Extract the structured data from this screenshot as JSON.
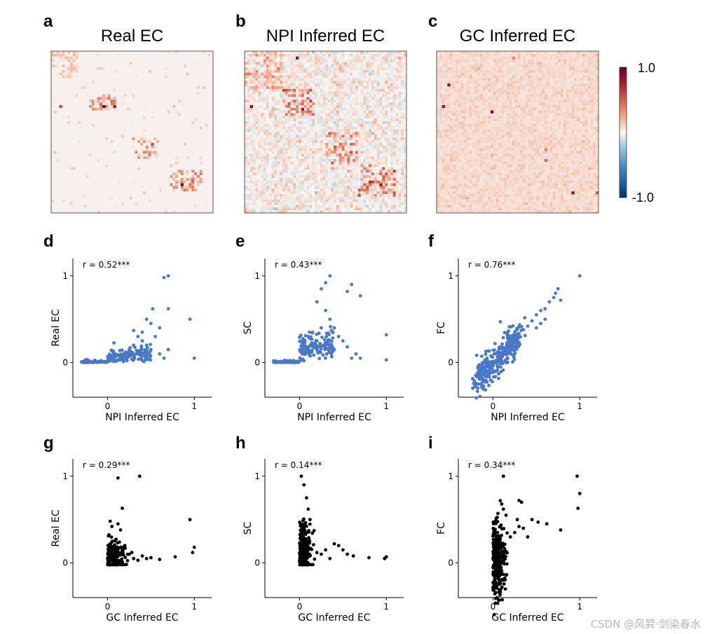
{
  "figure": {
    "watermark": "CSDN @风巽·剑染春水",
    "colorbar": {
      "max_label": "1.0",
      "min_label": "-1.0",
      "colormap": [
        "#053061",
        "#2166ac",
        "#4393c3",
        "#92c5de",
        "#f7f7f7",
        "#f4a582",
        "#d6604d",
        "#b2182b",
        "#67001f"
      ]
    },
    "scatter_colors": {
      "top_row": "#4a78c9",
      "bottom_row": "#000000"
    }
  },
  "chart_data": [
    {
      "type": "heatmap",
      "panel": "a",
      "title": "Real EC",
      "grid_size": 60,
      "value_range": [
        -1.0,
        1.0
      ],
      "background_value": 0.02,
      "clusters": [
        {
          "rows": [
            0,
            10
          ],
          "cols": [
            0,
            10
          ],
          "intensity": 0.18
        },
        {
          "rows": [
            16,
            22
          ],
          "cols": [
            14,
            24
          ],
          "intensity": 0.45
        },
        {
          "rows": [
            32,
            40
          ],
          "cols": [
            30,
            40
          ],
          "intensity": 0.4
        },
        {
          "rows": [
            44,
            52
          ],
          "cols": [
            44,
            56
          ],
          "intensity": 0.45
        }
      ],
      "peaks": [
        [
          20,
          19,
          1.0
        ],
        [
          20,
          23,
          0.8
        ],
        [
          20,
          3,
          0.6
        ],
        [
          49,
          48,
          0.95
        ],
        [
          34,
          37,
          0.6
        ]
      ]
    },
    {
      "type": "heatmap",
      "panel": "b",
      "title": "NPI Inferred EC",
      "grid_size": 60,
      "value_range": [
        -1.0,
        1.0
      ],
      "background_value": 0.03,
      "clusters": [
        {
          "rows": [
            0,
            14
          ],
          "cols": [
            0,
            14
          ],
          "intensity": 0.3
        },
        {
          "rows": [
            14,
            24
          ],
          "cols": [
            14,
            26
          ],
          "intensity": 0.55
        },
        {
          "rows": [
            30,
            42
          ],
          "cols": [
            30,
            42
          ],
          "intensity": 0.45
        },
        {
          "rows": [
            42,
            54
          ],
          "cols": [
            42,
            56
          ],
          "intensity": 0.6
        }
      ],
      "peaks": [
        [
          2,
          19,
          0.9
        ],
        [
          20,
          2,
          0.95
        ],
        [
          21,
          21,
          0.8
        ],
        [
          49,
          50,
          0.85
        ],
        [
          48,
          46,
          0.7
        ]
      ]
    },
    {
      "type": "heatmap",
      "panel": "c",
      "title": "GC Inferred EC",
      "grid_size": 60,
      "value_range": [
        -1.0,
        1.0
      ],
      "background_value": 0.05,
      "clusters": [],
      "peaks": [
        [
          12,
          4,
          0.9
        ],
        [
          20,
          2,
          0.85
        ],
        [
          22,
          20,
          0.95
        ],
        [
          40,
          40,
          0.5
        ],
        [
          52,
          50,
          0.9
        ],
        [
          52,
          60,
          0.6
        ],
        [
          2,
          28,
          0.35
        ],
        [
          36,
          40,
          0.4
        ]
      ]
    },
    {
      "type": "scatter",
      "panel": "d",
      "xlabel": "NPI Inferred EC",
      "ylabel": "Real EC",
      "annotation": "r = 0.52***",
      "xlim": [
        -0.4,
        1.2
      ],
      "ylim": [
        -0.4,
        1.2
      ],
      "xticks": [
        "0",
        "1"
      ],
      "yticks": [
        "0",
        "1"
      ],
      "color_key": "top_row",
      "points": [
        [
          0.95,
          0.5
        ],
        [
          1.0,
          0.05
        ],
        [
          0.65,
          0.98
        ],
        [
          0.7,
          1.0
        ],
        [
          0.52,
          0.62
        ],
        [
          0.7,
          0.62
        ],
        [
          0.45,
          0.5
        ],
        [
          0.5,
          0.45
        ],
        [
          0.6,
          0.4
        ],
        [
          0.55,
          0.3
        ],
        [
          0.4,
          0.35
        ],
        [
          0.35,
          0.3
        ],
        [
          0.3,
          0.37
        ],
        [
          0.4,
          0.25
        ],
        [
          0.45,
          0.2
        ],
        [
          0.5,
          0.15
        ],
        [
          0.6,
          0.1
        ],
        [
          0.65,
          0.05
        ],
        [
          0.7,
          0.15
        ],
        [
          0.3,
          0.2
        ],
        [
          0.25,
          0.15
        ],
        [
          0.2,
          0.1
        ],
        [
          0.35,
          0.1
        ],
        [
          0.15,
          0.05
        ]
      ],
      "cloud": {
        "x_range": [
          -0.3,
          0.5
        ],
        "y_center": 0.0,
        "y_spread": 0.06,
        "count": 220,
        "tilt": 0.1
      }
    },
    {
      "type": "scatter",
      "panel": "e",
      "xlabel": "NPI Inferred EC",
      "ylabel": "SC",
      "annotation": "r = 0.43***",
      "xlim": [
        -0.4,
        1.2
      ],
      "ylim": [
        -0.4,
        1.2
      ],
      "xticks": [
        "0",
        "1"
      ],
      "yticks": [
        "0",
        "1"
      ],
      "color_key": "top_row",
      "points": [
        [
          1.0,
          0.32
        ],
        [
          1.0,
          0.03
        ],
        [
          0.35,
          1.0
        ],
        [
          0.3,
          0.92
        ],
        [
          0.6,
          0.9
        ],
        [
          0.55,
          0.82
        ],
        [
          0.7,
          0.77
        ],
        [
          0.25,
          0.85
        ],
        [
          0.2,
          0.7
        ],
        [
          0.3,
          0.6
        ],
        [
          0.35,
          0.5
        ],
        [
          0.4,
          0.4
        ],
        [
          0.45,
          0.3
        ],
        [
          0.5,
          0.25
        ],
        [
          0.55,
          0.18
        ],
        [
          0.65,
          0.1
        ],
        [
          0.25,
          0.4
        ],
        [
          0.15,
          0.35
        ],
        [
          0.1,
          0.3
        ],
        [
          0.2,
          0.25
        ],
        [
          0.3,
          0.2
        ],
        [
          0.4,
          0.15
        ],
        [
          0.6,
          0.05
        ],
        [
          0.7,
          0.05
        ],
        [
          0.05,
          0.2
        ]
      ],
      "cloud": {
        "x_range": [
          -0.3,
          0.4
        ],
        "y_center": 0.05,
        "y_spread": 0.1,
        "count": 260,
        "tilt": 0.2
      }
    },
    {
      "type": "scatter",
      "panel": "f",
      "xlabel": "NPI Inferred EC",
      "ylabel": "FC",
      "annotation": "r = 0.76***",
      "xlim": [
        -0.4,
        1.2
      ],
      "ylim": [
        -0.4,
        1.2
      ],
      "xticks": [
        "0",
        "1"
      ],
      "yticks": [
        "0",
        "1"
      ],
      "color_key": "top_row",
      "points": [
        [
          1.0,
          1.0
        ],
        [
          0.75,
          0.85
        ],
        [
          0.72,
          0.8
        ],
        [
          0.7,
          0.75
        ],
        [
          0.65,
          0.7
        ],
        [
          0.6,
          0.62
        ],
        [
          0.55,
          0.6
        ],
        [
          0.5,
          0.55
        ],
        [
          0.45,
          0.48
        ],
        [
          0.4,
          0.42
        ],
        [
          0.35,
          0.38
        ],
        [
          0.3,
          0.33
        ],
        [
          0.25,
          0.28
        ],
        [
          0.2,
          0.2
        ],
        [
          0.78,
          0.72
        ],
        [
          0.55,
          0.45
        ],
        [
          0.6,
          0.5
        ],
        [
          0.5,
          0.4
        ]
      ],
      "cloud": {
        "x_range": [
          -0.2,
          0.3
        ],
        "y_center": 0.0,
        "y_spread": 0.09,
        "count": 320,
        "tilt": 1.0
      }
    },
    {
      "type": "scatter",
      "panel": "g",
      "xlabel": "GC Inferred EC",
      "ylabel": "Real EC",
      "annotation": "r = 0.29***",
      "xlim": [
        -0.4,
        1.2
      ],
      "ylim": [
        -0.4,
        1.2
      ],
      "xticks": [
        "0",
        "1"
      ],
      "yticks": [
        "0",
        "1"
      ],
      "color_key": "bottom_row",
      "points": [
        [
          0.12,
          0.98
        ],
        [
          0.37,
          1.0
        ],
        [
          0.95,
          0.5
        ],
        [
          1.0,
          0.18
        ],
        [
          0.98,
          0.12
        ],
        [
          0.17,
          0.63
        ],
        [
          0.03,
          0.48
        ],
        [
          0.05,
          0.42
        ],
        [
          0.12,
          0.45
        ],
        [
          0.15,
          0.38
        ],
        [
          0.2,
          0.2
        ],
        [
          0.25,
          0.1
        ],
        [
          0.3,
          0.05
        ],
        [
          0.4,
          0.08
        ],
        [
          0.45,
          0.05
        ],
        [
          0.5,
          0.06
        ],
        [
          0.6,
          0.04
        ],
        [
          0.78,
          0.07
        ],
        [
          0.35,
          0.03
        ],
        [
          0.28,
          0.12
        ]
      ],
      "cloud": {
        "x_range": [
          0.0,
          0.2
        ],
        "y_center": 0.05,
        "y_spread": 0.1,
        "count": 200,
        "tilt": 0.0
      }
    },
    {
      "type": "scatter",
      "panel": "h",
      "xlabel": "GC Inferred EC",
      "ylabel": "SC",
      "annotation": "r = 0.14***",
      "xlim": [
        -0.4,
        1.2
      ],
      "ylim": [
        -0.4,
        1.2
      ],
      "xticks": [
        "0",
        "1"
      ],
      "yticks": [
        "0",
        "1"
      ],
      "color_key": "bottom_row",
      "points": [
        [
          0.02,
          1.0
        ],
        [
          0.05,
          0.9
        ],
        [
          0.08,
          0.75
        ],
        [
          0.1,
          0.62
        ],
        [
          0.12,
          0.5
        ],
        [
          0.4,
          0.22
        ],
        [
          0.45,
          0.2
        ],
        [
          0.5,
          0.15
        ],
        [
          0.55,
          0.1
        ],
        [
          0.62,
          0.08
        ],
        [
          0.8,
          0.06
        ],
        [
          0.98,
          0.05
        ],
        [
          1.0,
          0.07
        ],
        [
          0.3,
          0.15
        ],
        [
          0.25,
          0.1
        ],
        [
          0.2,
          0.12
        ],
        [
          0.35,
          0.05
        ]
      ],
      "cloud": {
        "x_range": [
          0.0,
          0.15
        ],
        "y_center": 0.15,
        "y_spread": 0.16,
        "count": 220,
        "tilt": 0.0
      }
    },
    {
      "type": "scatter",
      "panel": "i",
      "xlabel": "GC Inferred EC",
      "ylabel": "FC",
      "annotation": "r = 0.34***",
      "xlim": [
        -0.4,
        1.2
      ],
      "ylim": [
        -0.4,
        1.2
      ],
      "xticks": [
        "0",
        "1"
      ],
      "yticks": [
        "0",
        "1"
      ],
      "color_key": "bottom_row",
      "points": [
        [
          0.97,
          1.0
        ],
        [
          1.0,
          0.8
        ],
        [
          0.98,
          0.63
        ],
        [
          0.12,
          1.0
        ],
        [
          0.3,
          0.72
        ],
        [
          0.33,
          0.7
        ],
        [
          0.45,
          0.5
        ],
        [
          0.52,
          0.47
        ],
        [
          0.62,
          0.45
        ],
        [
          0.78,
          0.38
        ],
        [
          0.28,
          0.5
        ],
        [
          0.3,
          0.42
        ],
        [
          0.25,
          0.35
        ],
        [
          0.35,
          0.4
        ],
        [
          0.2,
          0.3
        ],
        [
          0.4,
          0.3
        ],
        [
          0.15,
          0.55
        ],
        [
          0.12,
          0.62
        ]
      ],
      "cloud": {
        "x_range": [
          0.0,
          0.15
        ],
        "y_center": 0.05,
        "y_spread": 0.22,
        "count": 320,
        "tilt": 0.0
      }
    }
  ]
}
